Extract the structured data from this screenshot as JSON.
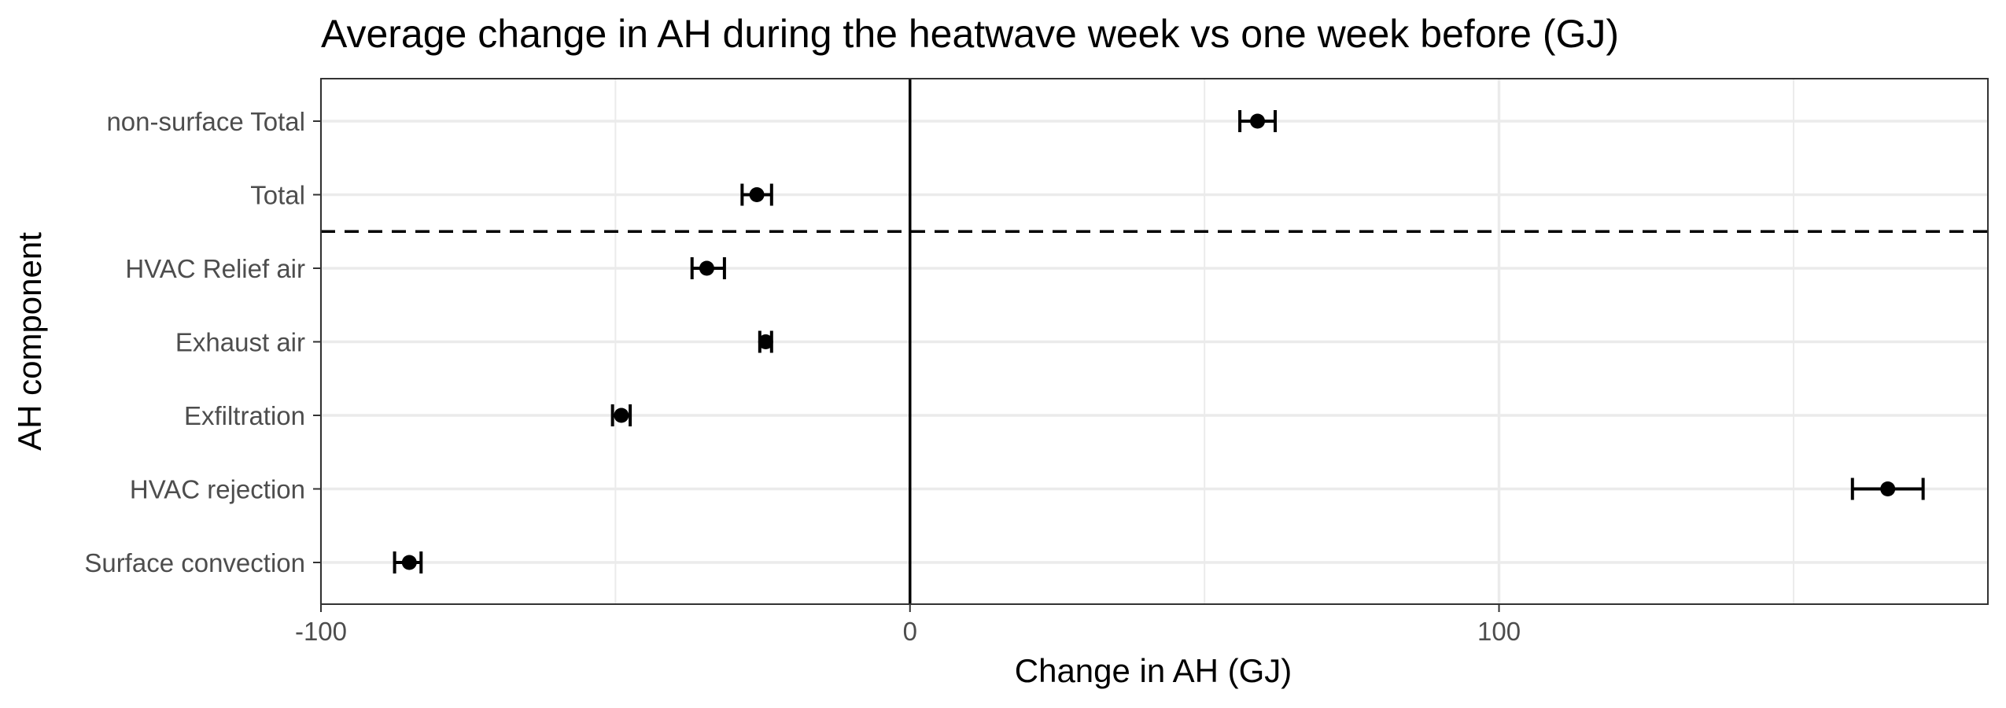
{
  "chart_data": {
    "type": "scatter",
    "subtype": "point-with-errorbars",
    "title": "Average change in AH during the heatwave week vs one week before (GJ)",
    "xlabel": "Change in AH (GJ)",
    "ylabel": "AH component",
    "xlim": [
      -100,
      183
    ],
    "x_ticks": [
      "-100",
      "0",
      "100"
    ],
    "x_tick_values": [
      -100,
      0,
      100
    ],
    "x_minor_grid": [
      -50,
      50,
      150
    ],
    "grid": true,
    "legend": "none",
    "categories": [
      "non-surface Total",
      "Total",
      "HVAC Relief air",
      "Exhaust air",
      "Exfiltration",
      "HVAC rejection",
      "Surface convection"
    ],
    "points": [
      {
        "category": "non-surface Total",
        "x": 59,
        "low": 56,
        "high": 62
      },
      {
        "category": "Total",
        "x": -26,
        "low": -28.5,
        "high": -23.5
      },
      {
        "category": "HVAC Relief air",
        "x": -34.5,
        "low": -37,
        "high": -31.5
      },
      {
        "category": "Exhaust air",
        "x": -24.5,
        "low": -25.5,
        "high": -23.5
      },
      {
        "category": "Exfiltration",
        "x": -49,
        "low": -50.5,
        "high": -47.5
      },
      {
        "category": "HVAC rejection",
        "x": 166,
        "low": 160,
        "high": 172
      },
      {
        "category": "Surface convection",
        "x": -85,
        "low": -87.5,
        "high": -83
      }
    ],
    "reference_lines": [
      {
        "orientation": "vertical",
        "value": 0,
        "style": "solid"
      },
      {
        "orientation": "horizontal",
        "between_categories": [
          "Total",
          "HVAC Relief air"
        ],
        "style": "dashed"
      }
    ],
    "colors": {
      "points": "#000000",
      "grid": "#ebebeb",
      "panel_border": "#333333",
      "tick_text": "#4d4d4d"
    }
  }
}
